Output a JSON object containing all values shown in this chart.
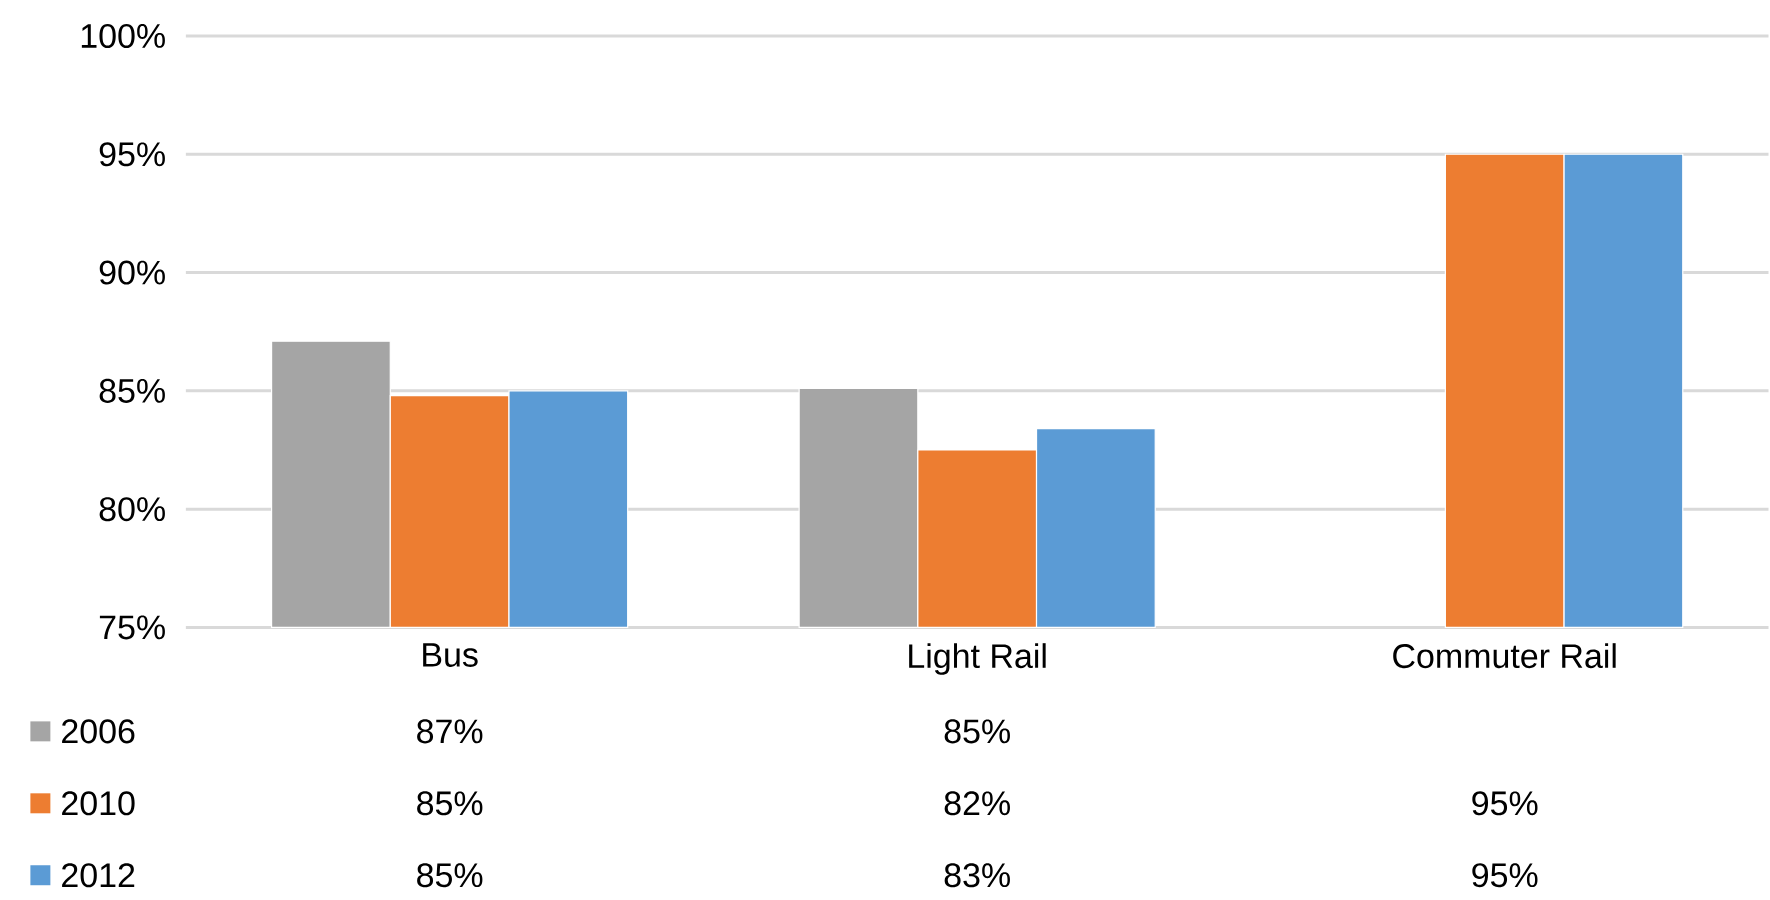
{
  "chart_data": {
    "type": "bar",
    "categories": [
      "Bus",
      "Light Rail",
      "Commuter Rail"
    ],
    "series": [
      {
        "name": "2006",
        "color": "#a5a5a5",
        "values": [
          87.1,
          85.1,
          null
        ],
        "value_labels": [
          "87%",
          "85%",
          null
        ]
      },
      {
        "name": "2010",
        "color": "#ed7d31",
        "values": [
          84.8,
          82.5,
          95.0
        ],
        "value_labels": [
          "85%",
          "82%",
          "95%"
        ]
      },
      {
        "name": "2012",
        "color": "#5b9bd5",
        "values": [
          85.0,
          83.4,
          95.0
        ],
        "value_labels": [
          "85%",
          "83%",
          "95%"
        ]
      }
    ],
    "ylim": [
      75,
      100
    ],
    "yticks": [
      {
        "value": 75,
        "label": "75%"
      },
      {
        "value": 80,
        "label": "80%"
      },
      {
        "value": 85,
        "label": "85%"
      },
      {
        "value": 90,
        "label": "90%"
      },
      {
        "value": 95,
        "label": "95%"
      },
      {
        "value": 100,
        "label": "100%"
      }
    ],
    "grid": "y",
    "legend": "bottom"
  }
}
